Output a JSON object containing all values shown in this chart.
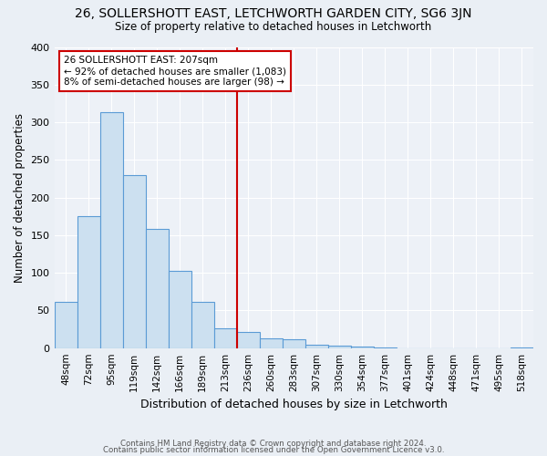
{
  "title": "26, SOLLERSHOTT EAST, LETCHWORTH GARDEN CITY, SG6 3JN",
  "subtitle": "Size of property relative to detached houses in Letchworth",
  "xlabel": "Distribution of detached houses by size in Letchworth",
  "ylabel": "Number of detached properties",
  "bar_labels": [
    "48sqm",
    "72sqm",
    "95sqm",
    "119sqm",
    "142sqm",
    "166sqm",
    "189sqm",
    "213sqm",
    "236sqm",
    "260sqm",
    "283sqm",
    "307sqm",
    "330sqm",
    "354sqm",
    "377sqm",
    "401sqm",
    "424sqm",
    "448sqm",
    "471sqm",
    "495sqm",
    "518sqm"
  ],
  "bar_values": [
    62,
    175,
    313,
    230,
    158,
    103,
    62,
    26,
    22,
    13,
    12,
    5,
    3,
    2,
    1,
    0,
    0,
    0,
    0,
    0,
    1
  ],
  "bar_color": "#cce0f0",
  "bar_edge_color": "#5b9bd5",
  "vline_x": 7.5,
  "vline_color": "#cc0000",
  "annotation_title": "26 SOLLERSHOTT EAST: 207sqm",
  "annotation_line1": "← 92% of detached houses are smaller (1,083)",
  "annotation_line2": "8% of semi-detached houses are larger (98) →",
  "annotation_box_color": "#ffffff",
  "annotation_box_edge": "#cc0000",
  "ylim": [
    0,
    400
  ],
  "yticks": [
    0,
    50,
    100,
    150,
    200,
    250,
    300,
    350,
    400
  ],
  "footer1": "Contains HM Land Registry data © Crown copyright and database right 2024.",
  "footer2": "Contains public sector information licensed under the Open Government Licence v3.0.",
  "bg_color": "#eaeff5",
  "plot_bg_color": "#edf1f7"
}
